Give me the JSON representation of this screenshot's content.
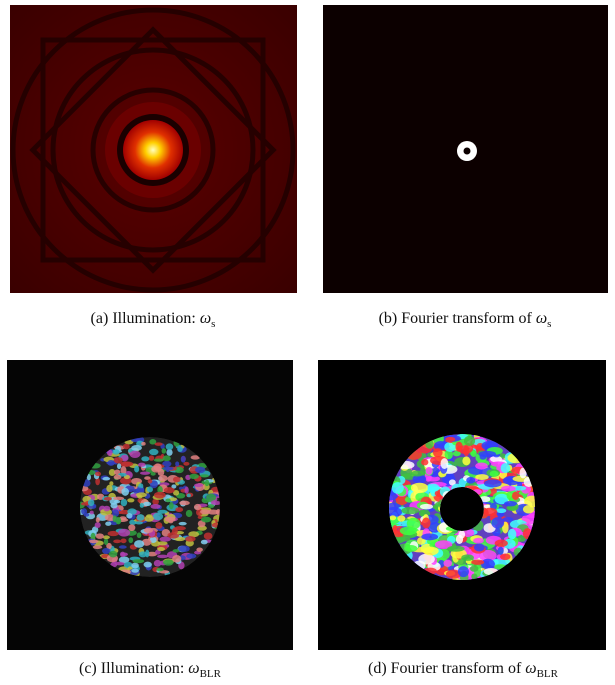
{
  "figures": [
    {
      "label": "(a)",
      "caption": "Illumination:",
      "symbol": "ω",
      "subscript": "s"
    },
    {
      "label": "(b)",
      "caption": "Fourier transform of",
      "symbol": "ω",
      "subscript": "s"
    },
    {
      "label": "(c)",
      "caption": "Illumination:",
      "symbol": "ω",
      "subscript": "BLR"
    },
    {
      "label": "(d)",
      "caption": "Fourier transform of",
      "symbol": "ω",
      "subscript": "BLR"
    }
  ]
}
